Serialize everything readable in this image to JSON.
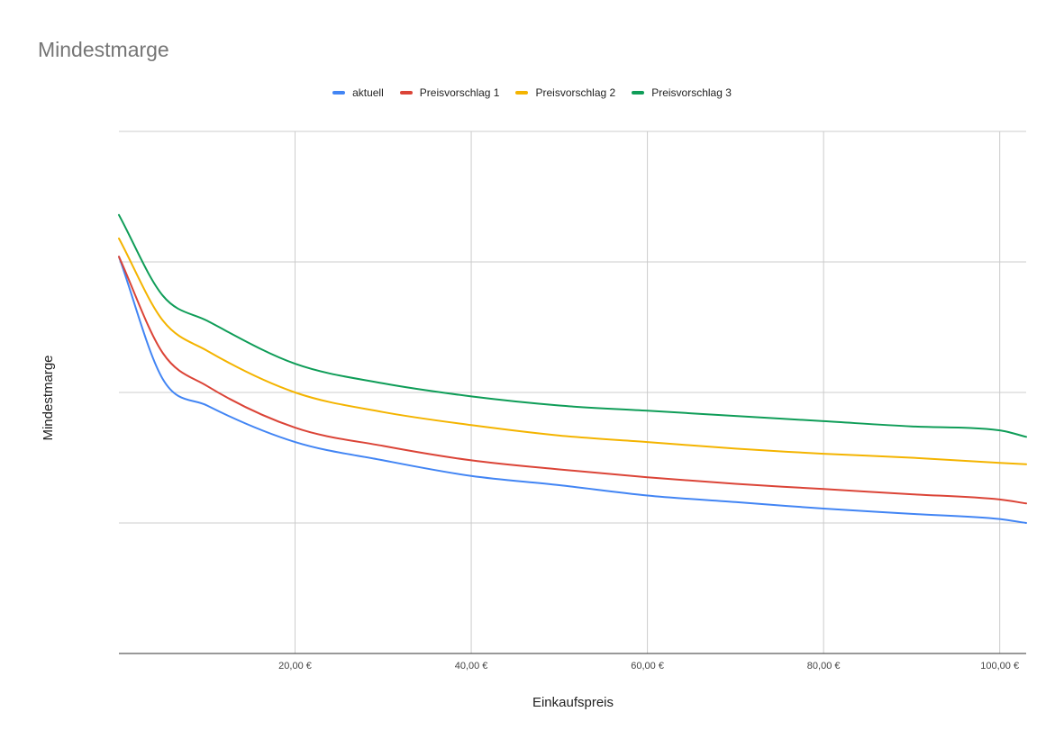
{
  "chart_data": {
    "type": "line",
    "title": "Mindestmarge",
    "xlabel": "Einkaufspreis",
    "ylabel": "Mindestmarge",
    "xlim": [
      0,
      103
    ],
    "ylim": [
      0,
      4
    ],
    "x_ticks": [
      {
        "value": 20,
        "label": "20,00 €"
      },
      {
        "value": 40,
        "label": "40,00 €"
      },
      {
        "value": 60,
        "label": "60,00 €"
      },
      {
        "value": 80,
        "label": "80,00 €"
      },
      {
        "value": 100,
        "label": "100,00 €"
      }
    ],
    "grid": true,
    "legend_position": "top",
    "x": [
      0,
      5,
      10,
      20,
      30,
      40,
      50,
      60,
      70,
      80,
      90,
      100,
      103
    ],
    "series": [
      {
        "name": "aktuell",
        "color": "#4285f4",
        "values": [
          3.04,
          2.1,
          1.9,
          1.62,
          1.48,
          1.36,
          1.29,
          1.21,
          1.16,
          1.11,
          1.07,
          1.03,
          1.0
        ]
      },
      {
        "name": "Preisvorschlag 1",
        "color": "#db4437",
        "values": [
          3.04,
          2.3,
          2.05,
          1.73,
          1.59,
          1.48,
          1.41,
          1.35,
          1.3,
          1.26,
          1.22,
          1.18,
          1.15
        ]
      },
      {
        "name": "Preisvorschlag 2",
        "color": "#f4b400",
        "values": [
          3.18,
          2.55,
          2.32,
          2.0,
          1.85,
          1.75,
          1.67,
          1.62,
          1.57,
          1.53,
          1.5,
          1.46,
          1.45
        ]
      },
      {
        "name": "Preisvorschlag 3",
        "color": "#0f9d58",
        "values": [
          3.36,
          2.74,
          2.55,
          2.22,
          2.07,
          1.97,
          1.9,
          1.86,
          1.82,
          1.78,
          1.74,
          1.71,
          1.66
        ]
      }
    ]
  }
}
